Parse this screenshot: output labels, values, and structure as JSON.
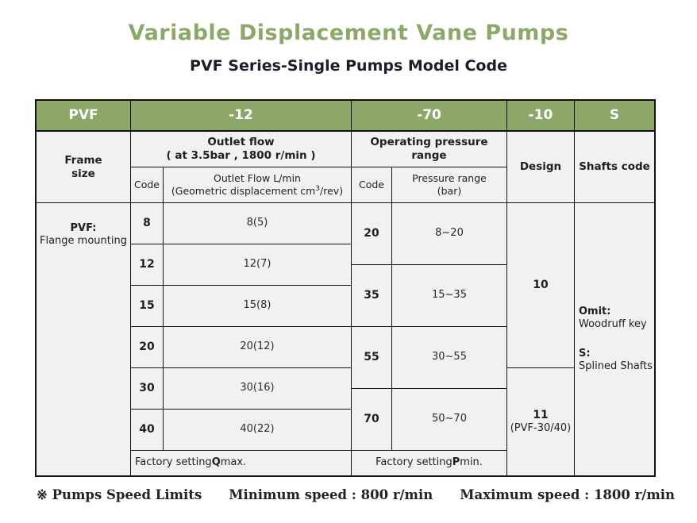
{
  "page": {
    "title": "Variable Displacement Vane Pumps",
    "subtitle": "PVF Series-Single Pumps Model Code"
  },
  "colors": {
    "title_green": "#8CA96A",
    "header_green": "#8DA768",
    "cell_background": "#F1F1EF",
    "border": "#121212"
  },
  "model_header": {
    "frame": "PVF",
    "flow": "-12",
    "pressure": "-70",
    "design": "-10",
    "shafts": "S"
  },
  "headers": {
    "frame_size": "Frame\nsize",
    "outlet_flow_line1": "Outlet flow",
    "outlet_flow_line2": "( at 3.5bar , 1800 r/min )",
    "operating_pressure": "Operating pressure range",
    "design": "Design",
    "shafts_code": "Shafts code",
    "flow_code": "Code",
    "flow_sub_line1": "Outlet Flow L/min",
    "flow_sub_prefix": "(Geometric displacement cm",
    "flow_sub_sup": "3",
    "flow_sub_suffix": "/rev)",
    "pressure_code": "Code",
    "pressure_sub": "Pressure range\n(bar)"
  },
  "body": {
    "frame_bold": "PVF:",
    "frame_text": "Flange mounting",
    "flow_rows": [
      {
        "code": "8",
        "value": "8(5)"
      },
      {
        "code": "12",
        "value": "12(7)"
      },
      {
        "code": "15",
        "value": "15(8)"
      },
      {
        "code": "20",
        "value": "20(12)"
      },
      {
        "code": "30",
        "value": "30(16)"
      },
      {
        "code": "40",
        "value": "40(22)"
      }
    ],
    "pressure_rows": [
      {
        "code": "20",
        "range": "8~20"
      },
      {
        "code": "35",
        "range": "15~35"
      },
      {
        "code": "55",
        "range": "30~55"
      },
      {
        "code": "70",
        "range": "50~70"
      }
    ],
    "design_10": "10",
    "design_11": "11",
    "design_11_note": "(PVF-30/40)",
    "shafts_omit_bold": "Omit:",
    "shafts_omit_text": "Woodruff key",
    "shafts_s_bold": "S:",
    "shafts_s_text": "Splined Shafts",
    "factory_flow_prefix": "Factory setting ",
    "factory_flow_bold": "Q",
    "factory_flow_suffix": " max.",
    "factory_pressure_prefix": "Factory setting ",
    "factory_pressure_bold": "P",
    "factory_pressure_suffix": " min."
  },
  "footer": {
    "label": "※ Pumps Speed Limits",
    "min_speed": "Minimum speed : 800 r/min",
    "max_speed": "Maximum speed : 1800 r/min"
  }
}
